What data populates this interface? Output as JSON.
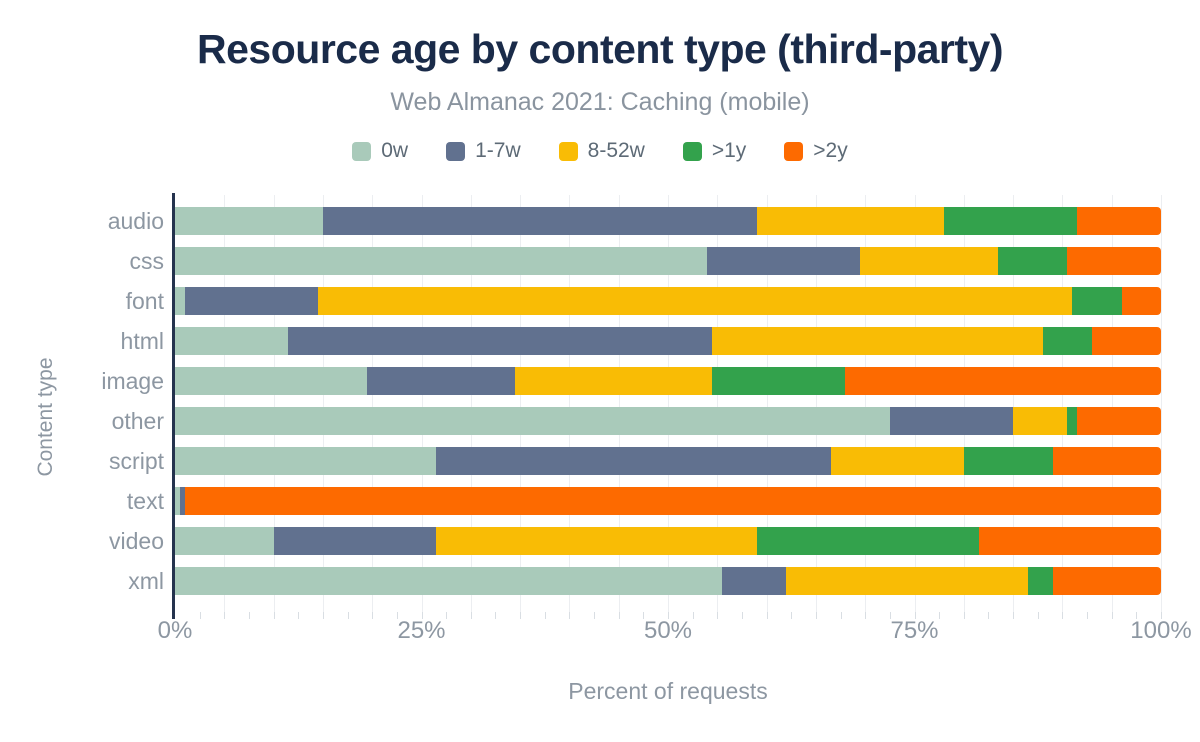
{
  "chart_data": {
    "type": "bar",
    "orientation": "horizontal",
    "stacked": true,
    "title": "Resource age by content type (third-party)",
    "subtitle": "Web Almanac 2021: Caching (mobile)",
    "xlabel": "Percent of requests",
    "ylabel": "Content type",
    "xlim": [
      0,
      100
    ],
    "grid": "vertical major gridlines every 5%, minor axis ticks every 2.5%",
    "legend_position": "top",
    "categories": [
      "audio",
      "css",
      "font",
      "html",
      "image",
      "other",
      "script",
      "text",
      "video",
      "xml"
    ],
    "x_ticks": [
      {
        "value": 0,
        "label": "0%"
      },
      {
        "value": 25,
        "label": "25%"
      },
      {
        "value": 50,
        "label": "50%"
      },
      {
        "value": 75,
        "label": "75%"
      },
      {
        "value": 100,
        "label": "100%"
      }
    ],
    "series": [
      {
        "key": "0w",
        "name": "0w",
        "color": "#a9caba",
        "values": [
          15,
          54,
          1,
          11.5,
          19.5,
          72.5,
          26.5,
          0.5,
          10,
          55.5
        ]
      },
      {
        "key": "1-7w",
        "name": "1-7w",
        "color": "#61718f",
        "values": [
          44,
          15.5,
          13.5,
          43,
          15,
          12.5,
          40,
          0.5,
          16.5,
          6.5
        ]
      },
      {
        "key": "8-52w",
        "name": "8-52w",
        "color": "#f9bc05",
        "values": [
          19,
          14,
          76.5,
          33.5,
          20,
          5.5,
          13.5,
          0,
          32.5,
          24.5
        ]
      },
      {
        "key": "gt1y",
        "name": ">1y",
        "color": "#33a24c",
        "values": [
          13.5,
          7,
          5,
          5,
          13.5,
          1,
          9,
          0,
          22.5,
          2.5
        ]
      },
      {
        "key": "gt2y",
        "name": ">2y",
        "color": "#fd6a00",
        "values": [
          8.5,
          9.5,
          4,
          7,
          32,
          8.5,
          11,
          99,
          18.5,
          11
        ]
      }
    ]
  },
  "colors": {
    "title": "#1a2b49",
    "subtitle": "#8a949f",
    "axis_labels": "#8d97a2",
    "legend_text": "#5d6a76",
    "axis_line": "#25334e",
    "gridline": "#eceef1",
    "background": "#ffffff"
  }
}
